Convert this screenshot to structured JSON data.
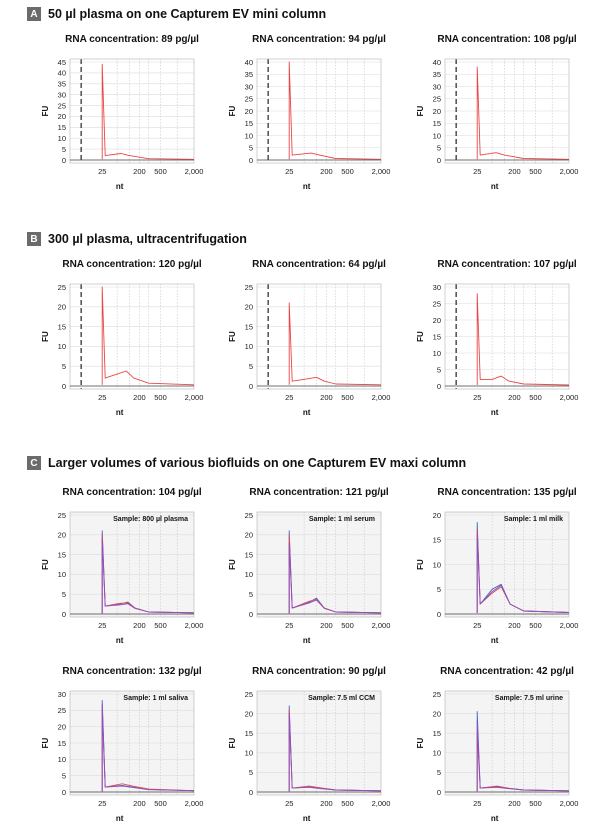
{
  "sections": [
    {
      "label": "A",
      "title": "50 µl plasma on one Capturem EV mini column"
    },
    {
      "label": "B",
      "title": "300 µl plasma, ultracentrifugation"
    },
    {
      "label": "C",
      "title": "Larger volumes of various biofluids on one Capturem EV maxi column"
    }
  ],
  "chart_data": [
    {
      "type": "line",
      "title": "RNA concentration: 89 pg/µl",
      "xlabel": "nt",
      "ylabel": "FU",
      "x_ticks": [
        "25",
        "200",
        "500",
        "2,000"
      ],
      "y_ticks": [
        0,
        5,
        10,
        15,
        20,
        25,
        30,
        35,
        40,
        45
      ],
      "ylim": [
        0,
        45
      ],
      "series": [
        {
          "color": "#e8474a",
          "points": [
            [
              25,
              0.3
            ],
            [
              25,
              44
            ],
            [
              30,
              2
            ],
            [
              75,
              3
            ],
            [
              120,
              2
            ],
            [
              300,
              0.6
            ],
            [
              2000,
              0.3
            ]
          ]
        }
      ]
    },
    {
      "type": "line",
      "title": "RNA concentration: 94 pg/µl",
      "xlabel": "nt",
      "ylabel": "FU",
      "x_ticks": [
        "25",
        "200",
        "500",
        "2,000"
      ],
      "y_ticks": [
        0,
        5,
        10,
        15,
        20,
        25,
        30,
        35,
        40
      ],
      "ylim": [
        0,
        40
      ],
      "series": [
        {
          "color": "#e8474a",
          "points": [
            [
              25,
              0.3
            ],
            [
              25,
              40
            ],
            [
              30,
              2
            ],
            [
              90,
              2.8
            ],
            [
              140,
              2
            ],
            [
              300,
              0.6
            ],
            [
              2000,
              0.3
            ]
          ]
        }
      ]
    },
    {
      "type": "line",
      "title": "RNA concentration: 108 pg/µl",
      "xlabel": "nt",
      "ylabel": "FU",
      "x_ticks": [
        "25",
        "200",
        "500",
        "2,000"
      ],
      "y_ticks": [
        0,
        5,
        10,
        15,
        20,
        25,
        30,
        35,
        40
      ],
      "ylim": [
        0,
        40
      ],
      "series": [
        {
          "color": "#e8474a",
          "points": [
            [
              25,
              0.3
            ],
            [
              25,
              38
            ],
            [
              30,
              2
            ],
            [
              75,
              3
            ],
            [
              120,
              2
            ],
            [
              300,
              0.6
            ],
            [
              2000,
              0.3
            ]
          ]
        }
      ]
    },
    {
      "type": "line",
      "title": "RNA concentration: 120 pg/µl",
      "xlabel": "nt",
      "ylabel": "FU",
      "x_ticks": [
        "25",
        "200",
        "500",
        "2,000"
      ],
      "y_ticks": [
        0,
        5,
        10,
        15,
        20,
        25
      ],
      "ylim": [
        0,
        25
      ],
      "series": [
        {
          "color": "#e8474a",
          "points": [
            [
              25,
              0.3
            ],
            [
              25,
              25
            ],
            [
              30,
              2
            ],
            [
              60,
              3
            ],
            [
              100,
              3.8
            ],
            [
              150,
              2
            ],
            [
              300,
              0.7
            ],
            [
              2000,
              0.3
            ]
          ]
        }
      ]
    },
    {
      "type": "line",
      "title": "RNA concentration: 64 pg/µl",
      "xlabel": "nt",
      "ylabel": "FU",
      "x_ticks": [
        "25",
        "200",
        "500",
        "2,000"
      ],
      "y_ticks": [
        0,
        5,
        10,
        15,
        20,
        25
      ],
      "ylim": [
        0,
        25
      ],
      "series": [
        {
          "color": "#e8474a",
          "points": [
            [
              25,
              0.3
            ],
            [
              25,
              21
            ],
            [
              30,
              1.2
            ],
            [
              70,
              1.8
            ],
            [
              120,
              2.2
            ],
            [
              180,
              1.2
            ],
            [
              300,
              0.5
            ],
            [
              2000,
              0.3
            ]
          ]
        }
      ]
    },
    {
      "type": "line",
      "title": "RNA concentration: 107 pg/µl",
      "xlabel": "nt",
      "ylabel": "FU",
      "x_ticks": [
        "25",
        "200",
        "500",
        "2,000"
      ],
      "y_ticks": [
        0,
        5,
        10,
        15,
        20,
        25,
        30
      ],
      "ylim": [
        0,
        30
      ],
      "series": [
        {
          "color": "#e8474a",
          "points": [
            [
              25,
              0.3
            ],
            [
              25,
              28
            ],
            [
              30,
              2
            ],
            [
              60,
              2
            ],
            [
              100,
              3
            ],
            [
              150,
              1.5
            ],
            [
              300,
              0.6
            ],
            [
              2000,
              0.3
            ]
          ]
        }
      ]
    },
    {
      "type": "line",
      "title": "RNA concentration: 104 pg/µl",
      "sample": "Sample: 800 µl plasma",
      "xlabel": "nt",
      "ylabel": "FU",
      "x_ticks": [
        "25",
        "200",
        "500",
        "2,000"
      ],
      "y_ticks": [
        0,
        5,
        10,
        15,
        20,
        25
      ],
      "ylim": [
        0,
        25
      ],
      "series": [
        {
          "color": "#3a6cc9",
          "points": [
            [
              25,
              0.2
            ],
            [
              25,
              21
            ],
            [
              30,
              2
            ],
            [
              70,
              2.5
            ],
            [
              110,
              3
            ],
            [
              160,
              1.5
            ],
            [
              300,
              0.5
            ],
            [
              2000,
              0.3
            ]
          ]
        },
        {
          "color": "#e8474a",
          "points": [
            [
              25,
              0.2
            ],
            [
              25,
              20
            ],
            [
              30,
              2
            ],
            [
              70,
              2.7
            ],
            [
              110,
              2.8
            ],
            [
              160,
              1.5
            ],
            [
              300,
              0.5
            ],
            [
              2000,
              0.3
            ]
          ]
        },
        {
          "color": "#8e4fc0",
          "points": [
            [
              25,
              0.2
            ],
            [
              25,
              19
            ],
            [
              30,
              2
            ],
            [
              70,
              2.3
            ],
            [
              110,
              2.6
            ],
            [
              160,
              1.4
            ],
            [
              300,
              0.5
            ],
            [
              2000,
              0.3
            ]
          ]
        }
      ]
    },
    {
      "type": "line",
      "title": "RNA concentration: 121 pg/µl",
      "sample": "Sample: 1 ml serum",
      "xlabel": "nt",
      "ylabel": "FU",
      "x_ticks": [
        "25",
        "200",
        "500",
        "2,000"
      ],
      "y_ticks": [
        0,
        5,
        10,
        15,
        20,
        25
      ],
      "ylim": [
        0,
        25
      ],
      "series": [
        {
          "color": "#3a6cc9",
          "points": [
            [
              25,
              0.2
            ],
            [
              25,
              21
            ],
            [
              30,
              1.5
            ],
            [
              80,
              3
            ],
            [
              120,
              4
            ],
            [
              180,
              1.5
            ],
            [
              300,
              0.5
            ],
            [
              2000,
              0.3
            ]
          ]
        },
        {
          "color": "#e8474a",
          "points": [
            [
              25,
              0.2
            ],
            [
              25,
              20
            ],
            [
              30,
              1.5
            ],
            [
              80,
              3.2
            ],
            [
              120,
              3.7
            ],
            [
              180,
              1.5
            ],
            [
              300,
              0.5
            ],
            [
              2000,
              0.3
            ]
          ]
        },
        {
          "color": "#8e4fc0",
          "points": [
            [
              25,
              0.2
            ],
            [
              25,
              18
            ],
            [
              30,
              1.5
            ],
            [
              80,
              2.8
            ],
            [
              120,
              3.5
            ],
            [
              180,
              1.4
            ],
            [
              300,
              0.5
            ],
            [
              2000,
              0.3
            ]
          ]
        }
      ]
    },
    {
      "type": "line",
      "title": "RNA concentration: 135 pg/µl",
      "sample": "Sample: 1 ml milk",
      "xlabel": "nt",
      "ylabel": "FU",
      "x_ticks": [
        "25",
        "200",
        "500",
        "2,000"
      ],
      "y_ticks": [
        0,
        5,
        10,
        15,
        20
      ],
      "ylim": [
        0,
        20
      ],
      "series": [
        {
          "color": "#3a6cc9",
          "points": [
            [
              25,
              0.2
            ],
            [
              25,
              18.5
            ],
            [
              30,
              2
            ],
            [
              60,
              5
            ],
            [
              100,
              6
            ],
            [
              160,
              2
            ],
            [
              300,
              0.6
            ],
            [
              2000,
              0.3
            ]
          ]
        },
        {
          "color": "#e8474a",
          "points": [
            [
              25,
              0.2
            ],
            [
              25,
              17
            ],
            [
              30,
              2
            ],
            [
              60,
              4.2
            ],
            [
              100,
              5.5
            ],
            [
              160,
              2
            ],
            [
              300,
              0.6
            ],
            [
              2000,
              0.3
            ]
          ]
        },
        {
          "color": "#8e4fc0",
          "points": [
            [
              25,
              0.2
            ],
            [
              25,
              16
            ],
            [
              30,
              2
            ],
            [
              60,
              4.5
            ],
            [
              100,
              5.8
            ],
            [
              160,
              2
            ],
            [
              300,
              0.6
            ],
            [
              2000,
              0.3
            ]
          ]
        }
      ]
    },
    {
      "type": "line",
      "title": "RNA concentration: 132 pg/µl",
      "sample": "Sample: 1 ml saliva",
      "xlabel": "nt",
      "ylabel": "FU",
      "x_ticks": [
        "25",
        "200",
        "500",
        "2,000"
      ],
      "y_ticks": [
        0,
        5,
        10,
        15,
        20,
        25,
        30
      ],
      "ylim": [
        0,
        30
      ],
      "series": [
        {
          "color": "#3a6cc9",
          "points": [
            [
              25,
              0.2
            ],
            [
              25,
              28
            ],
            [
              30,
              1.5
            ],
            [
              80,
              2
            ],
            [
              140,
              1.5
            ],
            [
              300,
              0.8
            ],
            [
              2000,
              0.4
            ]
          ]
        },
        {
          "color": "#e8474a",
          "points": [
            [
              25,
              0.2
            ],
            [
              25,
              25
            ],
            [
              30,
              1.5
            ],
            [
              80,
              2.5
            ],
            [
              140,
              1.8
            ],
            [
              300,
              0.9
            ],
            [
              2000,
              0.4
            ]
          ]
        },
        {
          "color": "#8e4fc0",
          "points": [
            [
              25,
              0.2
            ],
            [
              25,
              27
            ],
            [
              30,
              1.5
            ],
            [
              80,
              1.8
            ],
            [
              140,
              1.4
            ],
            [
              300,
              0.7
            ],
            [
              2000,
              0.4
            ]
          ]
        }
      ]
    },
    {
      "type": "line",
      "title": "RNA concentration: 90 pg/µl",
      "sample": "Sample: 7.5 ml CCM",
      "xlabel": "nt",
      "ylabel": "FU",
      "x_ticks": [
        "25",
        "200",
        "500",
        "2,000"
      ],
      "y_ticks": [
        0,
        5,
        10,
        15,
        20,
        25
      ],
      "ylim": [
        0,
        25
      ],
      "series": [
        {
          "color": "#3a6cc9",
          "points": [
            [
              25,
              0.2
            ],
            [
              25,
              22
            ],
            [
              30,
              1
            ],
            [
              80,
              1.3
            ],
            [
              140,
              1
            ],
            [
              300,
              0.5
            ],
            [
              2000,
              0.3
            ]
          ]
        },
        {
          "color": "#e8474a",
          "points": [
            [
              25,
              0.2
            ],
            [
              25,
              21
            ],
            [
              30,
              1
            ],
            [
              80,
              1.5
            ],
            [
              140,
              1.1
            ],
            [
              300,
              0.5
            ],
            [
              2000,
              0.3
            ]
          ]
        },
        {
          "color": "#8e4fc0",
          "points": [
            [
              25,
              0.2
            ],
            [
              25,
              20
            ],
            [
              30,
              1
            ],
            [
              80,
              1.2
            ],
            [
              140,
              0.9
            ],
            [
              300,
              0.5
            ],
            [
              2000,
              0.3
            ]
          ]
        }
      ]
    },
    {
      "type": "line",
      "title": "RNA concentration: 42 pg/µl",
      "sample": "Sample: 7.5 ml urine",
      "xlabel": "nt",
      "ylabel": "FU",
      "x_ticks": [
        "25",
        "200",
        "500",
        "2,000"
      ],
      "y_ticks": [
        0,
        5,
        10,
        15,
        20,
        25
      ],
      "ylim": [
        0,
        25
      ],
      "series": [
        {
          "color": "#3a6cc9",
          "points": [
            [
              25,
              0.2
            ],
            [
              25,
              20.5
            ],
            [
              30,
              1
            ],
            [
              80,
              1.4
            ],
            [
              140,
              1
            ],
            [
              300,
              0.5
            ],
            [
              2000,
              0.3
            ]
          ]
        },
        {
          "color": "#e8474a",
          "points": [
            [
              25,
              0.2
            ],
            [
              25,
              15
            ],
            [
              30,
              1
            ],
            [
              80,
              1.5
            ],
            [
              140,
              1
            ],
            [
              300,
              0.5
            ],
            [
              2000,
              0.3
            ]
          ]
        },
        {
          "color": "#8e4fc0",
          "points": [
            [
              25,
              0.2
            ],
            [
              25,
              18
            ],
            [
              30,
              1
            ],
            [
              80,
              1.2
            ],
            [
              140,
              0.9
            ],
            [
              300,
              0.5
            ],
            [
              2000,
              0.3
            ]
          ]
        }
      ]
    }
  ]
}
